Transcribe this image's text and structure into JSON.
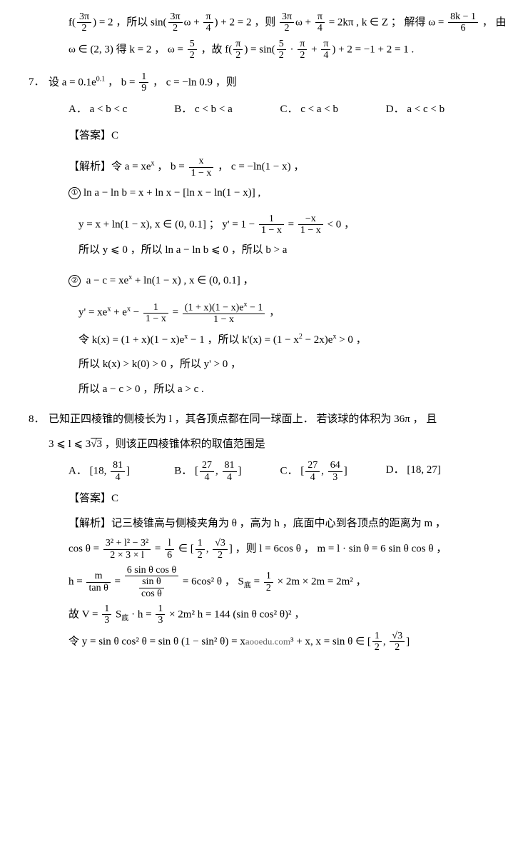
{
  "q6tail": {
    "l1a": "f(",
    "l1b": ") = 2 ，所以 sin(",
    "l1c": "ω + ",
    "l1d": ") +  2 =  2 ，则 ",
    "l1e": "ω + ",
    "l1f": " = 2kπ , k ∈ Z ； 解得 ω = ",
    "l1g": " ， 由",
    "f1n": "3π",
    "f1d": "2",
    "f2n": "3π",
    "f2d": "2",
    "f3n": "π",
    "f3d": "4",
    "f4n": "3π",
    "f4d": "2",
    "f5n": "π",
    "f5d": "4",
    "f6n": "8k − 1",
    "f6d": "6",
    "l2a": "ω ∈ (2, 3) 得 k = 2 ， ω = ",
    "l2b": " ，故 f(",
    "l2c": ") = sin(",
    "l2d": " · ",
    "l2e": " + ",
    "l2f": ") + 2 = −1 + 2 = 1 .",
    "g1n": "5",
    "g1d": "2",
    "g2n": "π",
    "g2d": "2",
    "g3n": "5",
    "g3d": "2",
    "g4n": "π",
    "g4d": "2",
    "g5n": "π",
    "g5d": "4"
  },
  "q7": {
    "num": "7．",
    "stem_a": "设 a = 0.1e",
    "stem_sup": "0.1",
    "stem_b": " ， b = ",
    "stem_c": " ， c = −ln 0.9 ，则",
    "bfn": "1",
    "bfd": "9",
    "optA": "A． a < b < c",
    "optB": "B． c < b < a",
    "optC": "C． c < a < b",
    "optD": "D． a < c < b",
    "ans": "【答案】C",
    "exp_a": "【解析】令 a = xe",
    "exp_sup": "x",
    "exp_b": " ， b = ",
    "exp_c": " ， c = −ln(1 − x) ，",
    "ef1n": "x",
    "ef1d": "1 − x",
    "c1": "①",
    "c1t": "ln a − ln b = x + ln x − [ln x − ln(1 − x)] ,",
    "y1a": "y = x + ln(1 − x), x ∈ (0, 0.1] ； y' = 1 − ",
    "y1b": " = ",
    "y1c": " < 0 ，",
    "yf1n": "1",
    "yf1d": "1 − x",
    "yf2n": "−x",
    "yf2d": "1 − x",
    "so1": "所以 y ⩽ 0 ，所以 ln a − ln b ⩽ 0 ，所以 b > a",
    "c2": "②",
    "c2t": " a − c = xe",
    "c2sup": "x",
    "c2t2": " + ln(1 − x) , x ∈ (0, 0.1] ，",
    "y2a": "y' = xe",
    "y2sup": "x",
    "y2b": " + e",
    "y2sup2": "x",
    "y2c": " − ",
    "y2d": " = ",
    "y2e": " ，",
    "y2f1n": "1",
    "y2f1d": "1 − x",
    "y2f2n": "(1 + x)(1 − x)e",
    "y2f2sup": "x",
    "y2f2n2": " − 1",
    "y2f2d": "1 − x",
    "k1a": "令 k(x) = (1 + x)(1 − x)e",
    "k1sup": "x",
    "k1b": " − 1 ，所以 k'(x) = (1 − x",
    "k1sup2": "2",
    "k1c": " − 2x)e",
    "k1sup3": "x",
    "k1d": " > 0 ，",
    "k2": "所以 k(x) > k(0) > 0 ，所以 y' > 0 ，",
    "k3": "所以 a − c > 0 ，所以 a > c ."
  },
  "q8": {
    "num": "8．",
    "stem1": "已知正四棱锥的侧棱长为 l ，其各顶点都在同一球面上． 若该球的体积为 36π ， 且",
    "stem2a": "3 ⩽  l  ⩽ 3",
    "stem2b": " ，则该正四棱锥体积的取值范围是",
    "sqrt3": "√3",
    "optA_a": "A． [18, ",
    "optA_b": "]",
    "af1n": "81",
    "af1d": "4",
    "optB_a": "B． [",
    "optB_b": ", ",
    "optB_c": "]",
    "bf1n": "27",
    "bf1d": "4",
    "bf2n": "81",
    "bf2d": "4",
    "optC_a": "C． [",
    "optC_b": ", ",
    "optC_c": "]",
    "cf1n": "27",
    "cf1d": "4",
    "cf2n": "64",
    "cf2d": "3",
    "optD": "D． [18, 27]",
    "ans": "【答案】C",
    "exp1": "【解析】记三棱锥高与侧棱夹角为 θ ，高为 h ，底面中心到各顶点的距离为 m ，",
    "l1a": "cos θ = ",
    "l1b": " = ",
    "l1c": " ∈ [",
    "l1d": ", ",
    "l1e": "] ，则 l = 6cos θ ， m = l · sin θ = 6 sin θ cos θ ，",
    "lf1n": "3² + l² − 3²",
    "lf1d": "2 × 3 × l",
    "lf2n": "l",
    "lf2d": "6",
    "lf3n": "1",
    "lf3d": "2",
    "lf4n": "√3",
    "lf4d": "2",
    "l2a": "h = ",
    "l2b": " = ",
    "l2c": " = 6cos² θ ， S",
    "l2sub": "底",
    "l2d": " = ",
    "l2e": " × 2m × 2m = 2m² ，",
    "hf1n": "m",
    "hf1d": "tan θ",
    "hf2n": "6 sin θ cos θ",
    "hf2dn": "sin θ",
    "hf2dd": "cos θ",
    "sf1n": "1",
    "sf1d": "2",
    "l3a": "故 V = ",
    "l3b": " S",
    "l3sub": "底",
    "l3c": " · h = ",
    "l3d": " × 2m² h = 144 (sin θ cos² θ)² ，",
    "vf1n": "1",
    "vf1d": "3",
    "vf2n": "1",
    "vf2d": "3",
    "l4a": "令 y = sin θ cos² θ = sin θ (1 − sin² θ) = x",
    "wm": "aooedu.com",
    "l4b": "³ + x, x = sin θ ∈ [",
    "l4c": ", ",
    "l4d": "]",
    "yf3n": "1",
    "yf3d": "2",
    "yf4n": "√3",
    "yf4d": "2"
  }
}
